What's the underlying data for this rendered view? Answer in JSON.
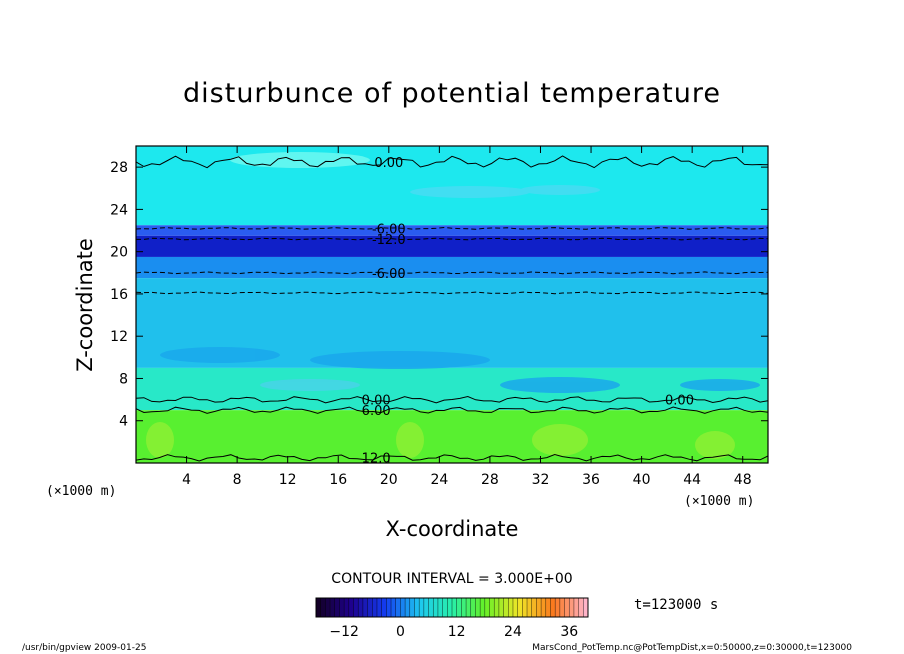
{
  "chart_data": {
    "type": "heatmap",
    "title": "disturbunce of potential temperature",
    "xlabel": "X-coordinate",
    "ylabel": "Z-coordinate",
    "x_unit": "(×1000 m)",
    "y_unit": "(×1000 m)",
    "xlim": [
      0,
      50
    ],
    "ylim": [
      0,
      30
    ],
    "xticks": [
      4,
      8,
      12,
      16,
      20,
      24,
      28,
      32,
      36,
      40,
      44,
      48
    ],
    "yticks": [
      4,
      8,
      12,
      16,
      20,
      24,
      28
    ],
    "contour_interval_text": "CONTOUR INTERVAL = 3.000E+00",
    "time_text": "t=123000 s",
    "colorbar": {
      "range": [
        -18,
        40
      ],
      "ticks": [
        -12,
        0,
        12,
        24,
        36
      ],
      "tick_labels": [
        "−12",
        "0",
        "12",
        "24",
        "36"
      ]
    },
    "bands": [
      {
        "z0": 22.5,
        "z1": 30,
        "value": 0,
        "color": "#1de8ee"
      },
      {
        "z0": 21.5,
        "z1": 22.5,
        "value": -9,
        "color": "#2a5cf0"
      },
      {
        "z0": 19.5,
        "z1": 21.5,
        "value": -13,
        "color": "#1020c8"
      },
      {
        "z0": 17.5,
        "z1": 19.5,
        "value": -7,
        "color": "#1a8ef0"
      },
      {
        "z0": 9,
        "z1": 17.5,
        "value": -3,
        "color": "#20c0ec"
      },
      {
        "z0": 5,
        "z1": 9,
        "value": 0,
        "color": "#28e8c8"
      },
      {
        "z0": 0,
        "z1": 5,
        "value": 12,
        "color": "#58f030"
      }
    ],
    "contours": [
      {
        "z": 28.5,
        "label": "0.00",
        "style": "solid"
      },
      {
        "z": 22.2,
        "label": "-6.00",
        "style": "dashed"
      },
      {
        "z": 21.2,
        "label": "-12.0",
        "style": "dashed"
      },
      {
        "z": 18.0,
        "label": "-6.00",
        "style": "dashed"
      },
      {
        "z": 16.1,
        "label": "",
        "style": "dashed"
      },
      {
        "z": 6.0,
        "label": "0.00",
        "style": "solid"
      },
      {
        "z": 5.0,
        "label": "6.00",
        "style": "solid"
      },
      {
        "z": 0.5,
        "label": "12.0",
        "style": "solid"
      }
    ]
  },
  "footer": {
    "left": "/usr/bin/gpview   2009-01-25",
    "right": "MarsCond_PotTemp.nc@PotTempDist,x=0:50000,z=0:30000,t=123000"
  }
}
